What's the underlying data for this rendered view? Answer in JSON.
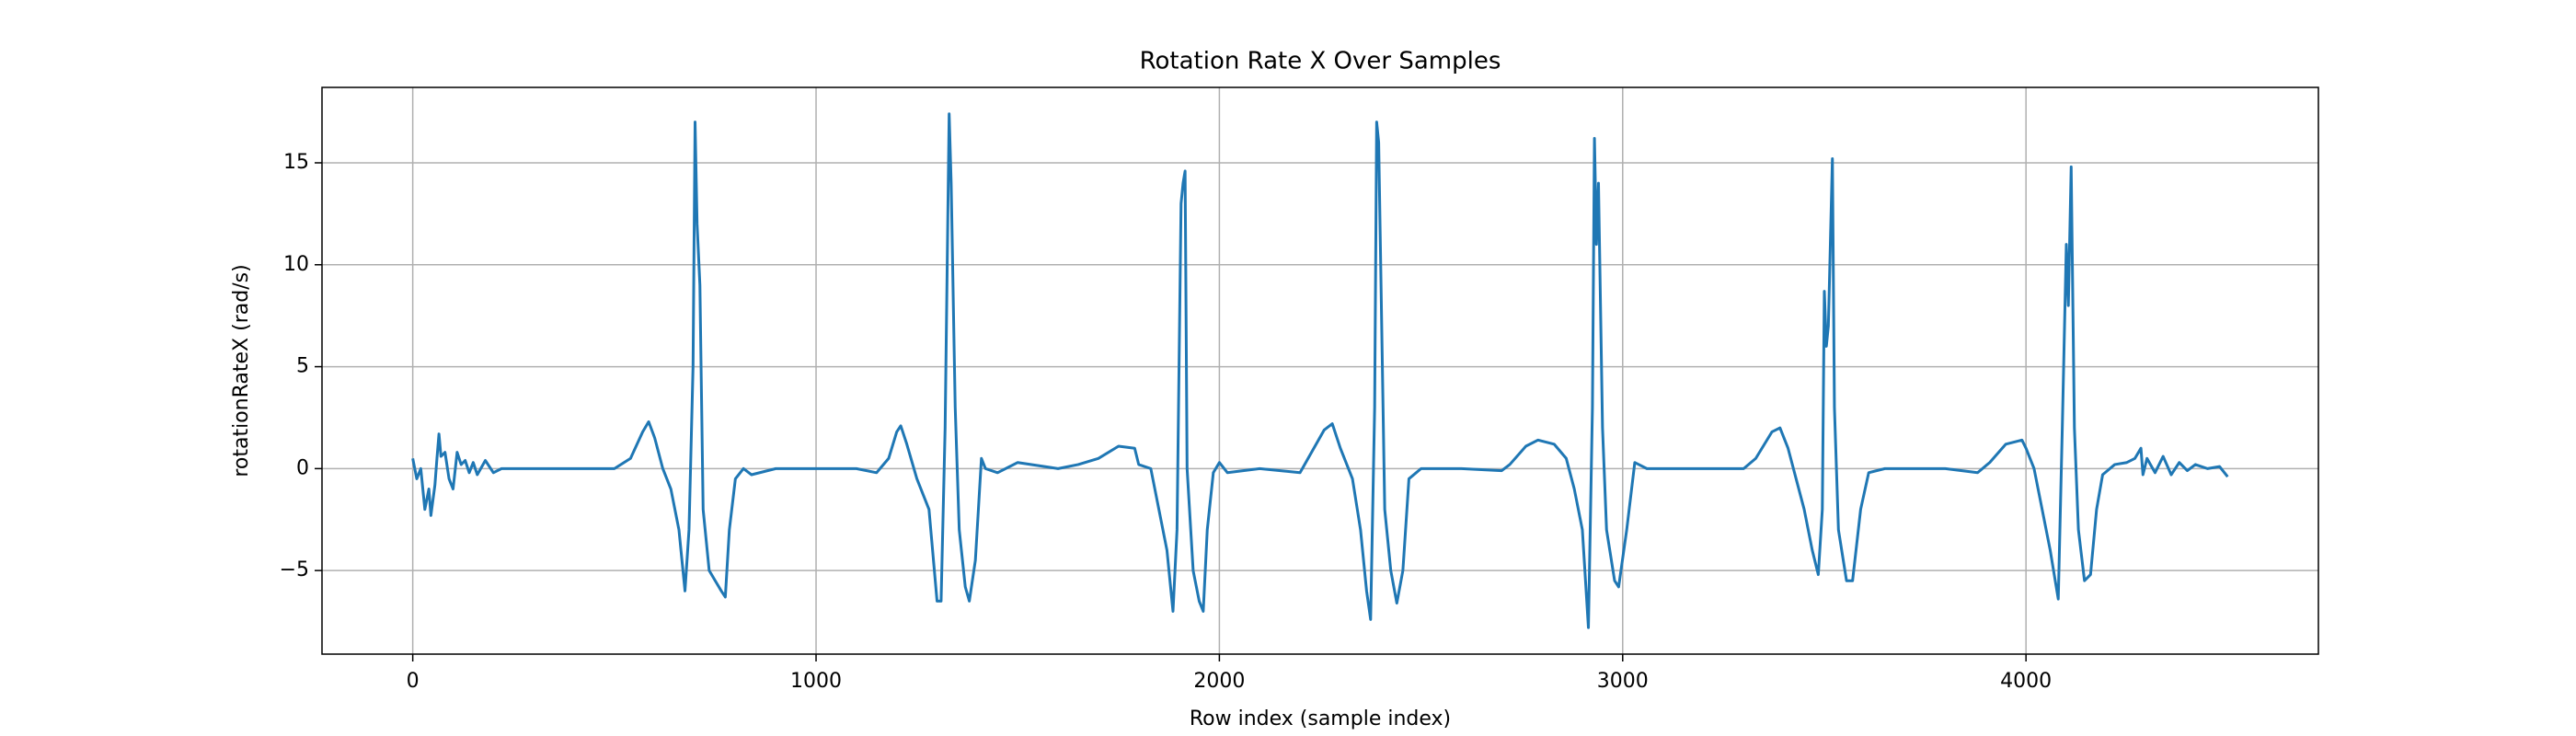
{
  "chart_data": {
    "type": "line",
    "title": "Rotation Rate X Over Samples",
    "xlabel": "Row index (sample index)",
    "ylabel": "rotationRateX (rad/s)",
    "color": "#1f77b4",
    "grid": true,
    "xlim": [
      -225,
      4725
    ],
    "ylim": [
      -9.1,
      18.7
    ],
    "xticks": [
      0,
      1000,
      2000,
      3000,
      4000
    ],
    "yticks": [
      {
        "value": -5,
        "label": "−5"
      },
      0,
      5,
      10,
      15
    ],
    "x": [
      0,
      10,
      20,
      30,
      40,
      45,
      55,
      60,
      65,
      70,
      80,
      90,
      100,
      110,
      120,
      130,
      140,
      150,
      160,
      180,
      200,
      220,
      300,
      400,
      500,
      540,
      570,
      585,
      600,
      620,
      640,
      660,
      675,
      685,
      695,
      700,
      705,
      712,
      720,
      735,
      750,
      765,
      775,
      785,
      800,
      820,
      840,
      900,
      1000,
      1100,
      1150,
      1180,
      1200,
      1210,
      1225,
      1250,
      1280,
      1300,
      1310,
      1320,
      1330,
      1335,
      1345,
      1355,
      1370,
      1380,
      1395,
      1410,
      1420,
      1450,
      1500,
      1600,
      1650,
      1700,
      1750,
      1790,
      1800,
      1830,
      1850,
      1870,
      1885,
      1895,
      1905,
      1910,
      1915,
      1920,
      1935,
      1950,
      1960,
      1970,
      1985,
      2000,
      2020,
      2100,
      2200,
      2220,
      2260,
      2280,
      2300,
      2330,
      2350,
      2365,
      2375,
      2385,
      2390,
      2395,
      2400,
      2410,
      2425,
      2440,
      2455,
      2470,
      2500,
      2600,
      2700,
      2720,
      2760,
      2790,
      2830,
      2860,
      2880,
      2900,
      2915,
      2925,
      2930,
      2935,
      2940,
      2950,
      2960,
      2980,
      2990,
      3010,
      3030,
      3060,
      3200,
      3300,
      3330,
      3370,
      3390,
      3410,
      3430,
      3450,
      3470,
      3485,
      3495,
      3500,
      3505,
      3510,
      3520,
      3525,
      3535,
      3555,
      3570,
      3590,
      3610,
      3650,
      3800,
      3880,
      3910,
      3950,
      3990,
      4000,
      4020,
      4040,
      4060,
      4080,
      4090,
      4100,
      4105,
      4112,
      4120,
      4130,
      4145,
      4160,
      4175,
      4190,
      4220,
      4250,
      4270,
      4285,
      4290,
      4300,
      4320,
      4340,
      4360,
      4380,
      4400,
      4420,
      4450,
      4480,
      4500
    ],
    "values": [
      0.5,
      -0.5,
      0,
      -2,
      -1,
      -2.3,
      -0.8,
      0.5,
      1.7,
      0.6,
      0.8,
      -0.5,
      -1,
      0.8,
      0.2,
      0.4,
      -0.2,
      0.3,
      -0.3,
      0.4,
      -0.2,
      0,
      0,
      0,
      0,
      0.5,
      1.8,
      2.3,
      1.5,
      0,
      -1,
      -3,
      -6,
      -3,
      5,
      17,
      12,
      9,
      -2,
      -5,
      -5.5,
      -6,
      -6.3,
      -3,
      -0.5,
      0,
      -0.3,
      0,
      0,
      0,
      -0.2,
      0.5,
      1.8,
      2.1,
      1.2,
      -0.5,
      -2,
      -6.5,
      -6.5,
      2,
      17.4,
      14,
      3,
      -3,
      -5.8,
      -6.5,
      -4.5,
      0.5,
      0,
      -0.2,
      0.3,
      0,
      0.2,
      0.5,
      1.1,
      1.0,
      0.2,
      0,
      -2,
      -4,
      -7,
      -3,
      13,
      14,
      14.6,
      0,
      -5,
      -6.5,
      -7,
      -3,
      -0.2,
      0.3,
      -0.2,
      0,
      -0.2,
      0.5,
      1.9,
      2.2,
      1,
      -0.5,
      -3,
      -6,
      -7.4,
      3,
      17,
      16,
      10,
      -2,
      -5,
      -6.6,
      -5,
      -0.5,
      0,
      0,
      -0.1,
      0.2,
      1.1,
      1.4,
      1.2,
      0.5,
      -1,
      -3,
      -7.8,
      3,
      16.2,
      11,
      14,
      2,
      -3,
      -5.5,
      -5.8,
      -3,
      0.3,
      0,
      0,
      0,
      0.5,
      1.8,
      2,
      1,
      -0.5,
      -2,
      -4,
      -5.2,
      -2,
      8.7,
      6,
      7,
      15.2,
      3,
      -3,
      -5.5,
      -5.5,
      -2,
      -0.2,
      0,
      0,
      -0.2,
      0.3,
      1.2,
      1.4,
      1,
      0,
      -2,
      -4,
      -6.4,
      2,
      11,
      8,
      14.8,
      2,
      -3,
      -5.5,
      -5.2,
      -2,
      -0.3,
      0.2,
      0.3,
      0.5,
      1,
      -0.3,
      0.5,
      -0.2,
      0.6,
      -0.3,
      0.3,
      -0.1,
      0.2,
      0,
      0.1,
      -0.4
    ]
  }
}
